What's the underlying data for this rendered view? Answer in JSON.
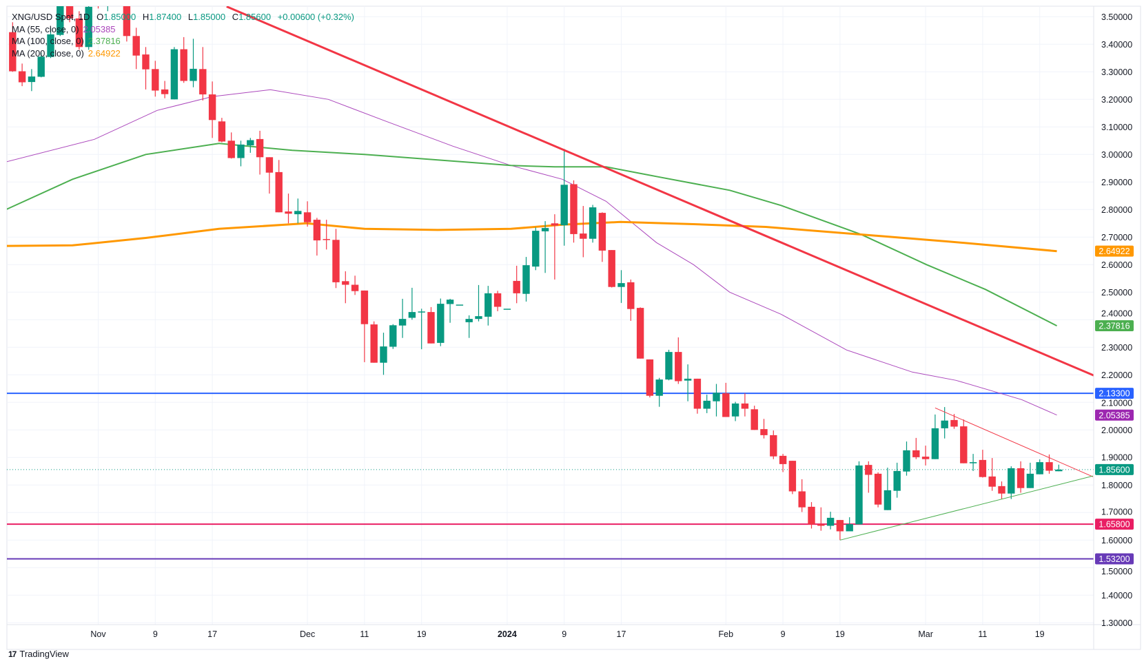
{
  "legend": {
    "symbol": "XNG/USD Spot, 1D",
    "o_label": "O",
    "o": "1.85000",
    "h_label": "H",
    "h": "1.87400",
    "l_label": "L",
    "l": "1.85000",
    "c_label": "C",
    "c": "1.85600",
    "change": "+0.00600 (+0.32%)",
    "ma": [
      {
        "label": "MA (55, close, 0)",
        "value": "2.05385",
        "color": "#ab47bc"
      },
      {
        "label": "MA (100, close, 0)",
        "value": "2.37816",
        "color": "#4caf50"
      },
      {
        "label": "MA (200, close, 0)",
        "value": "2.64922",
        "color": "#ff9800"
      }
    ]
  },
  "brand": {
    "name": "TradingView"
  },
  "colors": {
    "up": "#089981",
    "down": "#f23645",
    "grid": "#f0f3fa",
    "text": "#131722"
  },
  "chart_data": {
    "type": "candlestick",
    "title": "XNG/USD Spot, 1D",
    "ylim": [
      1.3,
      3.5
    ],
    "y_ticks": [
      "3.50000",
      "3.40000",
      "3.30000",
      "3.20000",
      "3.10000",
      "3.00000",
      "2.90000",
      "2.80000",
      "2.70000",
      "2.60000",
      "2.50000",
      "2.40000",
      "2.30000",
      "2.20000",
      "2.10000",
      "2.00000",
      "1.90000",
      "1.80000",
      "1.70000",
      "1.60000",
      "1.50000",
      "1.40000",
      "1.30000"
    ],
    "x_ticks": [
      {
        "i": 9,
        "label": "Nov"
      },
      {
        "i": 15,
        "label": "9"
      },
      {
        "i": 21,
        "label": "17"
      },
      {
        "i": 31,
        "label": "Dec"
      },
      {
        "i": 37,
        "label": "11"
      },
      {
        "i": 43,
        "label": "19"
      },
      {
        "i": 52,
        "label": "2024"
      },
      {
        "i": 58,
        "label": "9"
      },
      {
        "i": 64,
        "label": "17"
      },
      {
        "i": 75,
        "label": "Feb"
      },
      {
        "i": 81,
        "label": "9"
      },
      {
        "i": 87,
        "label": "19"
      },
      {
        "i": 96,
        "label": "Mar"
      },
      {
        "i": 102,
        "label": "11"
      },
      {
        "i": 108,
        "label": "19"
      }
    ],
    "ohlc": [
      [
        3.444,
        3.48,
        3.3,
        3.302
      ],
      [
        3.302,
        3.33,
        3.248,
        3.262
      ],
      [
        3.263,
        3.31,
        3.23,
        3.283
      ],
      [
        3.282,
        3.37,
        3.28,
        3.355
      ],
      [
        3.354,
        3.46,
        3.35,
        3.436
      ],
      [
        3.434,
        3.62,
        3.43,
        3.56
      ],
      [
        3.56,
        3.62,
        3.48,
        3.494
      ],
      [
        3.494,
        3.52,
        3.38,
        3.39
      ],
      [
        3.39,
        3.55,
        3.38,
        3.536
      ],
      [
        3.62,
        3.65,
        3.53,
        3.58
      ],
      [
        3.58,
        3.65,
        3.52,
        3.62
      ],
      [
        3.62,
        3.66,
        3.56,
        3.6
      ],
      [
        3.63,
        3.65,
        3.41,
        3.43
      ],
      [
        3.43,
        3.46,
        3.31,
        3.359
      ],
      [
        3.363,
        3.39,
        3.236,
        3.309
      ],
      [
        3.31,
        3.34,
        3.21,
        3.232
      ],
      [
        3.236,
        3.267,
        3.204,
        3.219
      ],
      [
        3.2,
        3.39,
        3.2,
        3.382
      ],
      [
        3.382,
        3.426,
        3.26,
        3.267
      ],
      [
        3.267,
        3.42,
        3.244,
        3.311
      ],
      [
        3.31,
        3.39,
        3.196,
        3.218
      ],
      [
        3.218,
        3.265,
        3.06,
        3.125
      ],
      [
        3.12,
        3.133,
        3.044,
        3.047
      ],
      [
        3.05,
        3.08,
        2.985,
        2.987
      ],
      [
        2.987,
        3.05,
        2.957,
        3.036
      ],
      [
        3.033,
        3.06,
        3.006,
        3.052
      ],
      [
        3.056,
        3.086,
        2.927,
        2.99
      ],
      [
        2.99,
        2.99,
        2.858,
        2.934
      ],
      [
        2.936,
        2.98,
        2.79,
        2.79
      ],
      [
        2.793,
        2.858,
        2.75,
        2.785
      ],
      [
        2.783,
        2.84,
        2.75,
        2.795
      ],
      [
        2.79,
        2.83,
        2.738,
        2.754
      ],
      [
        2.763,
        2.77,
        2.633,
        2.688
      ],
      [
        2.693,
        2.763,
        2.655,
        2.69
      ],
      [
        2.69,
        2.73,
        2.515,
        2.536
      ],
      [
        2.54,
        2.576,
        2.46,
        2.527
      ],
      [
        2.527,
        2.56,
        2.49,
        2.504
      ],
      [
        2.506,
        2.506,
        2.246,
        2.384
      ],
      [
        2.383,
        2.394,
        2.244,
        2.244
      ],
      [
        2.244,
        2.353,
        2.2,
        2.303
      ],
      [
        2.302,
        2.384,
        2.294,
        2.38
      ],
      [
        2.379,
        2.476,
        2.334,
        2.403
      ],
      [
        2.407,
        2.516,
        2.4,
        2.428
      ],
      [
        2.429,
        2.44,
        2.293,
        2.43
      ],
      [
        2.428,
        2.446,
        2.314,
        2.314
      ],
      [
        2.316,
        2.477,
        2.304,
        2.458
      ],
      [
        2.457,
        2.476,
        2.389,
        2.473
      ],
      [
        2.455,
        2.455,
        2.455,
        2.455
      ],
      [
        2.391,
        2.416,
        2.334,
        2.403
      ],
      [
        2.403,
        2.526,
        2.394,
        2.413
      ],
      [
        2.411,
        2.523,
        2.379,
        2.496
      ],
      [
        2.496,
        2.505,
        2.431,
        2.447
      ],
      [
        2.44,
        2.44,
        2.44,
        2.44
      ],
      [
        2.541,
        2.596,
        2.46,
        2.496
      ],
      [
        2.494,
        2.628,
        2.466,
        2.598
      ],
      [
        2.593,
        2.735,
        2.58,
        2.723
      ],
      [
        2.721,
        2.758,
        2.57,
        2.733
      ],
      [
        2.75,
        2.783,
        2.546,
        2.742
      ],
      [
        2.743,
        3.02,
        2.669,
        2.89
      ],
      [
        2.892,
        2.906,
        2.68,
        2.711
      ],
      [
        2.713,
        2.813,
        2.627,
        2.694
      ],
      [
        2.694,
        2.817,
        2.68,
        2.808
      ],
      [
        2.788,
        2.79,
        2.61,
        2.651
      ],
      [
        2.653,
        2.653,
        2.517,
        2.519
      ],
      [
        2.519,
        2.58,
        2.461,
        2.533
      ],
      [
        2.536,
        2.546,
        2.396,
        2.439
      ],
      [
        2.443,
        2.445,
        2.259,
        2.259
      ],
      [
        2.256,
        2.256,
        2.118,
        2.124
      ],
      [
        2.124,
        2.189,
        2.084,
        2.183
      ],
      [
        2.183,
        2.291,
        2.18,
        2.283
      ],
      [
        2.283,
        2.336,
        2.167,
        2.177
      ],
      [
        2.179,
        2.238,
        2.104,
        2.186
      ],
      [
        2.186,
        2.186,
        2.059,
        2.077
      ],
      [
        2.077,
        2.128,
        2.061,
        2.106
      ],
      [
        2.104,
        2.167,
        2.049,
        2.135
      ],
      [
        2.133,
        2.171,
        2.047,
        2.047
      ],
      [
        2.049,
        2.102,
        2.032,
        2.096
      ],
      [
        2.096,
        2.133,
        2.049,
        2.077
      ],
      [
        2.075,
        2.088,
        2.0,
        2.0
      ],
      [
        2.003,
        2.04,
        1.969,
        1.981
      ],
      [
        1.981,
        1.998,
        1.894,
        1.904
      ],
      [
        1.906,
        1.913,
        1.847,
        1.876
      ],
      [
        1.888,
        1.888,
        1.767,
        1.777
      ],
      [
        1.777,
        1.821,
        1.702,
        1.719
      ],
      [
        1.721,
        1.738,
        1.642,
        1.657
      ],
      [
        1.658,
        1.719,
        1.634,
        1.652
      ],
      [
        1.652,
        1.703,
        1.639,
        1.681
      ],
      [
        1.673,
        1.673,
        1.6,
        1.632
      ],
      [
        1.632,
        1.683,
        1.632,
        1.658
      ],
      [
        1.657,
        1.886,
        1.657,
        1.871
      ],
      [
        1.873,
        1.886,
        1.772,
        1.837
      ],
      [
        1.841,
        1.846,
        1.719,
        1.729
      ],
      [
        1.709,
        1.863,
        1.709,
        1.781
      ],
      [
        1.779,
        1.881,
        1.754,
        1.851
      ],
      [
        1.849,
        1.958,
        1.834,
        1.926
      ],
      [
        1.926,
        1.971,
        1.894,
        1.901
      ],
      [
        1.903,
        1.943,
        1.871,
        1.894
      ],
      [
        1.894,
        2.056,
        1.894,
        2.006
      ],
      [
        2.006,
        2.083,
        1.969,
        2.034
      ],
      [
        2.036,
        2.058,
        2.004,
        2.012
      ],
      [
        2.013,
        2.038,
        1.879,
        1.879
      ],
      [
        1.879,
        1.913,
        1.851,
        1.883
      ],
      [
        1.891,
        1.928,
        1.827,
        1.829
      ],
      [
        1.831,
        1.898,
        1.779,
        1.794
      ],
      [
        1.796,
        1.813,
        1.749,
        1.769
      ],
      [
        1.769,
        1.868,
        1.749,
        1.861
      ],
      [
        1.861,
        1.886,
        1.772,
        1.789
      ],
      [
        1.789,
        1.881,
        1.789,
        1.841
      ],
      [
        1.839,
        1.893,
        1.839,
        1.883
      ],
      [
        1.883,
        1.911,
        1.841,
        1.852
      ],
      [
        1.85,
        1.874,
        1.85,
        1.856
      ]
    ],
    "moving_averages": [
      {
        "name": "MA 55",
        "color": "#ab47bc",
        "width": 1,
        "points": [
          [
            -0.7,
            2.973
          ],
          [
            8.6,
            3.055
          ],
          [
            15.2,
            3.16
          ],
          [
            21,
            3.21
          ],
          [
            27.1,
            3.235
          ],
          [
            33.2,
            3.2
          ],
          [
            39.3,
            3.12
          ],
          [
            46.3,
            3.03
          ],
          [
            52.4,
            2.96
          ],
          [
            57.8,
            2.91
          ],
          [
            62.4,
            2.83
          ],
          [
            67.7,
            2.68
          ],
          [
            71.6,
            2.6
          ],
          [
            75.4,
            2.5
          ],
          [
            80.8,
            2.42
          ],
          [
            87.7,
            2.29
          ],
          [
            94.6,
            2.21
          ],
          [
            99.2,
            2.18
          ],
          [
            106.1,
            2.11
          ],
          [
            109.8,
            2.054
          ]
        ]
      },
      {
        "name": "MA 100",
        "color": "#4caf50",
        "width": 2,
        "points": [
          [
            -0.7,
            2.8
          ],
          [
            6.3,
            2.91
          ],
          [
            14,
            3.0
          ],
          [
            21.7,
            3.04
          ],
          [
            29.4,
            3.015
          ],
          [
            37,
            3.0
          ],
          [
            44.7,
            2.98
          ],
          [
            52.4,
            2.96
          ],
          [
            57,
            2.955
          ],
          [
            62.4,
            2.955
          ],
          [
            67.7,
            2.92
          ],
          [
            75.4,
            2.87
          ],
          [
            80.8,
            2.815
          ],
          [
            89.2,
            2.71
          ],
          [
            96.1,
            2.6
          ],
          [
            102.3,
            2.51
          ],
          [
            109.8,
            2.378
          ]
        ]
      },
      {
        "name": "MA 200",
        "color": "#ff9800",
        "width": 3,
        "points": [
          [
            -0.7,
            2.668
          ],
          [
            6.3,
            2.67
          ],
          [
            14,
            2.697
          ],
          [
            21.7,
            2.73
          ],
          [
            30.9,
            2.75
          ],
          [
            37,
            2.73
          ],
          [
            44.7,
            2.726
          ],
          [
            52.4,
            2.73
          ],
          [
            57.8,
            2.745
          ],
          [
            63.9,
            2.755
          ],
          [
            71.6,
            2.747
          ],
          [
            79.2,
            2.737
          ],
          [
            90.8,
            2.705
          ],
          [
            98.4,
            2.684
          ],
          [
            109.8,
            2.649
          ]
        ]
      }
    ],
    "trendlines": [
      {
        "name": "downtrend",
        "color": "#f23645",
        "width": 3,
        "from": [
          22.5,
          3.537
        ],
        "to": [
          113.8,
          2.196
        ]
      },
      {
        "name": "triangle-upper",
        "color": "#f23645",
        "width": 1,
        "from": [
          97,
          2.08
        ],
        "to": [
          113.6,
          1.83
        ]
      },
      {
        "name": "triangle-lower",
        "color": "#4caf50",
        "width": 1,
        "from": [
          87,
          1.6
        ],
        "to": [
          113.6,
          1.833
        ]
      }
    ],
    "levels": [
      {
        "value": 2.133,
        "color": "#2962ff"
      },
      {
        "value": 1.658,
        "color": "#e91e63"
      },
      {
        "value": 1.532,
        "color": "#673ab7"
      }
    ],
    "last_price_line": {
      "value": 1.856,
      "color": "#089981"
    },
    "badges": [
      {
        "value": 2.64922,
        "label": "2.64922",
        "color": "#ff9800"
      },
      {
        "value": 2.37816,
        "label": "2.37816",
        "color": "#4caf50"
      },
      {
        "value": 2.133,
        "label": "2.13300",
        "color": "#2962ff"
      },
      {
        "value": 2.05385,
        "label": "2.05385",
        "color": "#9c27b0"
      },
      {
        "value": 1.856,
        "label": "1.85600",
        "color": "#089981"
      },
      {
        "value": 1.658,
        "label": "1.65800",
        "color": "#e91e63"
      },
      {
        "value": 1.532,
        "label": "1.53200",
        "color": "#673ab7"
      }
    ]
  }
}
